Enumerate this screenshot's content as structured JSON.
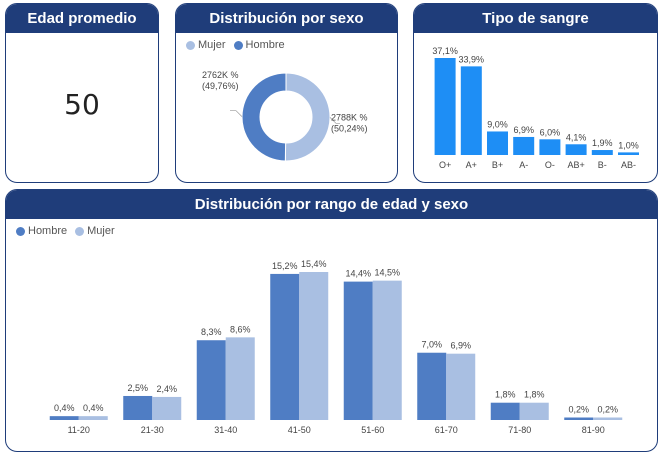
{
  "colors": {
    "header": "#1f3d7a",
    "hombre": "#4f7dc4",
    "mujer": "#a9bfe2",
    "sangre": "#1e8ef5"
  },
  "kpi": {
    "title": "Edad promedio",
    "value": "50"
  },
  "sex_card": {
    "title": "Distribución por sexo",
    "legend": [
      {
        "label": "Mujer",
        "color": "#a9bfe2"
      },
      {
        "label": "Hombre",
        "color": "#4f7dc4"
      }
    ]
  },
  "blood_card": {
    "title": "Tipo de sangre"
  },
  "range_card": {
    "title": "Distribución por rango de edad y sexo",
    "legend": [
      {
        "label": "Hombre",
        "color": "#4f7dc4"
      },
      {
        "label": "Mujer",
        "color": "#a9bfe2"
      }
    ]
  },
  "chart_data": [
    {
      "type": "pie",
      "title": "Distribución por sexo",
      "slices": [
        {
          "name": "Mujer",
          "value": 50.24,
          "label": "2788K %",
          "pct_label": "(50,24%)",
          "color": "#a9bfe2"
        },
        {
          "name": "Hombre",
          "value": 49.76,
          "label": "2762K %",
          "pct_label": "(49,76%)",
          "color": "#4f7dc4"
        }
      ]
    },
    {
      "type": "bar",
      "title": "Tipo de sangre",
      "categories": [
        "O+",
        "A+",
        "B+",
        "A-",
        "O-",
        "AB+",
        "B-",
        "AB-"
      ],
      "values": [
        37.1,
        33.9,
        9.0,
        6.9,
        6.0,
        4.1,
        1.9,
        1.0
      ],
      "labels": [
        "37,1%",
        "33,9%",
        "9,0%",
        "6,9%",
        "6,0%",
        "4,1%",
        "1,9%",
        "1,0%"
      ],
      "ylim": [
        0,
        37.1
      ]
    },
    {
      "type": "bar",
      "title": "Distribución por rango de edad y sexo",
      "categories": [
        "11-20",
        "21-30",
        "31-40",
        "41-50",
        "51-60",
        "61-70",
        "71-80",
        "81-90"
      ],
      "series": [
        {
          "name": "Hombre",
          "values": [
            0.4,
            2.5,
            8.3,
            15.2,
            14.4,
            7.0,
            1.8,
            0.2
          ],
          "labels": [
            "0,4%",
            "2,5%",
            "8,3%",
            "15,2%",
            "14,4%",
            "7,0%",
            "1,8%",
            "0,2%"
          ]
        },
        {
          "name": "Mujer",
          "values": [
            0.4,
            2.4,
            8.6,
            15.4,
            14.5,
            6.9,
            1.8,
            0.2
          ],
          "labels": [
            "0,4%",
            "2,4%",
            "8,6%",
            "15,4%",
            "14,5%",
            "6,9%",
            "1,8%",
            "0,2%"
          ]
        }
      ],
      "ylim": [
        0,
        15.4
      ]
    }
  ]
}
